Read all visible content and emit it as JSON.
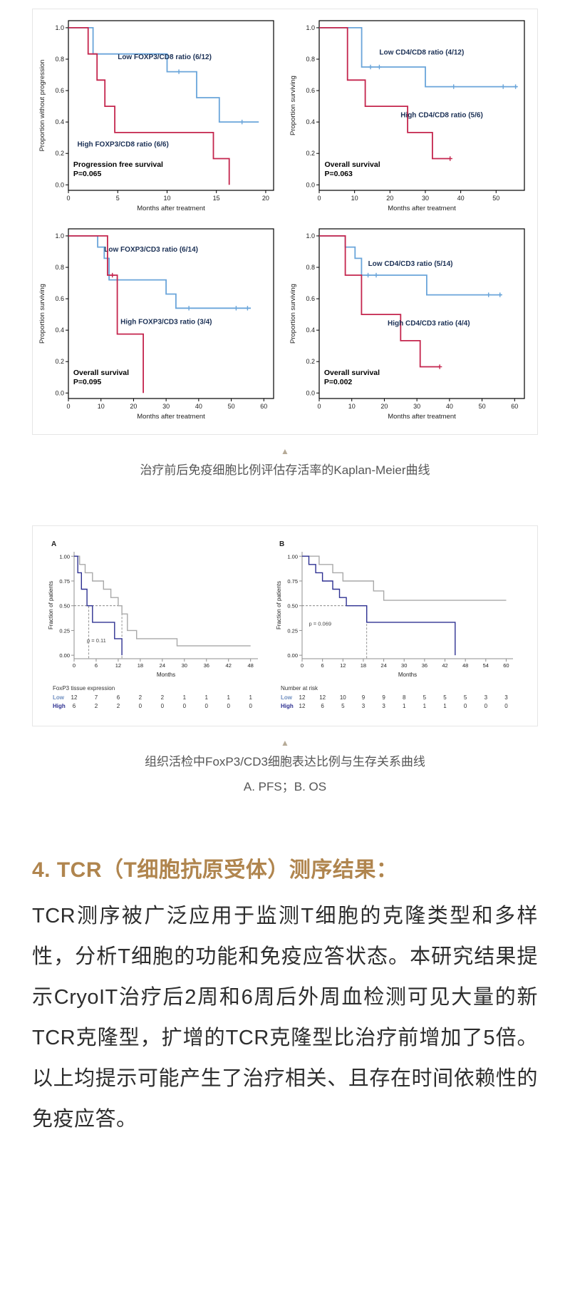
{
  "captions": {
    "arrow": "▲",
    "figure1": "治疗前后免疫细胞比例评估存活率的Kaplan-Meier曲线",
    "figure2_line1": "组织活检中FoxP3/CD3细胞表达比例与生存关系曲线",
    "figure2_line2": "A. PFS；B. OS"
  },
  "article": {
    "heading": "4. TCR（T细胞抗原受体）测序结果：",
    "heading_color": "#b0854e",
    "paragraph": "TCR测序被广泛应用于监测T细胞的克隆类型和多样性，分析T细胞的功能和免疫应答状态。本研究结果提示CryoIT治疗后2周和6周后外周血检测可见大量的新TCR克隆型，扩增的TCR克隆型比治疗前增加了5倍。以上均提示可能产生了治疗相关、且存在时间依赖性的免疫应答。"
  },
  "chart_data": [
    {
      "type": "line",
      "subtype": "kaplan-meier",
      "figure": 1,
      "ylabel": "Proportion without progression",
      "xlabel": "Months after treatment",
      "xticks": [
        0,
        5,
        10,
        15,
        20
      ],
      "yticks": [
        0,
        0.2,
        0.4,
        0.6,
        0.8,
        1
      ],
      "ydec": 1,
      "xmax": 20.8,
      "ylim": [
        0,
        1
      ],
      "annotation": [
        "Progression free survival",
        "P=0.065"
      ],
      "annotation_xy": [
        0.5,
        0.115
      ],
      "series": [
        {
          "label": "Low FOXP3/CD8 ratio (6/12)",
          "color": "#6aa5da",
          "label_xy": [
            5.0,
            0.8
          ],
          "points": [
            [
              0,
              1
            ],
            [
              2.5,
              1
            ],
            [
              2.5,
              0.833
            ],
            [
              10,
              0.833
            ],
            [
              10,
              0.72
            ],
            [
              13,
              0.72
            ],
            [
              13,
              0.555
            ],
            [
              15.3,
              0.555
            ],
            [
              15.3,
              0.4
            ],
            [
              19.3,
              0.4
            ]
          ],
          "censors": [
            [
              11.2,
              0.72
            ],
            [
              17.6,
              0.4
            ]
          ]
        },
        {
          "label": "High FOXP3/CD8 ratio (6/6)",
          "color": "#c4254d",
          "label_xy": [
            0.9,
            0.245
          ],
          "points": [
            [
              0,
              1
            ],
            [
              2,
              1
            ],
            [
              2,
              0.833
            ],
            [
              2.9,
              0.833
            ],
            [
              2.9,
              0.667
            ],
            [
              3.7,
              0.667
            ],
            [
              3.7,
              0.5
            ],
            [
              4.7,
              0.5
            ],
            [
              4.7,
              0.333
            ],
            [
              14.7,
              0.333
            ],
            [
              14.7,
              0.167
            ],
            [
              16.3,
              0.167
            ],
            [
              16.3,
              0
            ]
          ],
          "censors": []
        }
      ]
    },
    {
      "type": "line",
      "subtype": "kaplan-meier",
      "figure": 1,
      "ylabel": "Proportion surviving",
      "xlabel": "Months after treatment",
      "xticks": [
        0,
        10,
        20,
        30,
        40,
        50
      ],
      "yticks": [
        0,
        0.2,
        0.4,
        0.6,
        0.8,
        1
      ],
      "ydec": 1,
      "xmax": 58,
      "ylim": [
        0,
        1
      ],
      "annotation": [
        "Overall survival",
        "P=0.063"
      ],
      "annotation_xy": [
        1.5,
        0.115
      ],
      "series": [
        {
          "label": "Low CD4/CD8 ratio (4/12)",
          "color": "#6aa5da",
          "label_xy": [
            17,
            0.83
          ],
          "points": [
            [
              0,
              1
            ],
            [
              12,
              1
            ],
            [
              12,
              0.75
            ],
            [
              30,
              0.75
            ],
            [
              30,
              0.625
            ],
            [
              56,
              0.625
            ]
          ],
          "censors": [
            [
              14.5,
              0.75
            ],
            [
              17,
              0.75
            ],
            [
              38,
              0.625
            ],
            [
              52,
              0.625
            ],
            [
              55.5,
              0.625
            ]
          ]
        },
        {
          "label": "High CD4/CD8 ratio (5/6)",
          "color": "#c4254d",
          "label_xy": [
            23,
            0.43
          ],
          "points": [
            [
              0,
              1
            ],
            [
              8,
              1
            ],
            [
              8,
              0.667
            ],
            [
              13,
              0.667
            ],
            [
              13,
              0.5
            ],
            [
              25,
              0.5
            ],
            [
              25,
              0.333
            ],
            [
              32,
              0.333
            ],
            [
              32,
              0.167
            ],
            [
              37,
              0.167
            ]
          ],
          "censors": [
            [
              37,
              0.167
            ]
          ]
        }
      ]
    },
    {
      "type": "line",
      "subtype": "kaplan-meier",
      "figure": 1,
      "ylabel": "Proportion surviving",
      "xlabel": "Months after treatment",
      "xticks": [
        0,
        10,
        20,
        30,
        40,
        50,
        60
      ],
      "yticks": [
        0,
        0.2,
        0.4,
        0.6,
        0.8,
        1
      ],
      "ydec": 1,
      "xmax": 63,
      "ylim": [
        0,
        1
      ],
      "annotation": [
        "Overall survival",
        "P=0.095"
      ],
      "annotation_xy": [
        1.5,
        0.115
      ],
      "series": [
        {
          "label": "Low FOXP3/CD3 ratio (6/14)",
          "color": "#6aa5da",
          "label_xy": [
            11,
            0.9
          ],
          "points": [
            [
              0,
              1
            ],
            [
              9,
              1
            ],
            [
              9,
              0.929
            ],
            [
              11,
              0.929
            ],
            [
              11,
              0.857
            ],
            [
              12.5,
              0.857
            ],
            [
              12.5,
              0.72
            ],
            [
              30,
              0.72
            ],
            [
              30,
              0.63
            ],
            [
              33,
              0.63
            ],
            [
              33,
              0.54
            ],
            [
              56,
              0.54
            ]
          ],
          "censors": [
            [
              15,
              0.72
            ],
            [
              37,
              0.54
            ],
            [
              51.5,
              0.54
            ],
            [
              55,
              0.54
            ]
          ]
        },
        {
          "label": "High FOXP3/CD3 ratio (3/4)",
          "color": "#c4254d",
          "label_xy": [
            16,
            0.44
          ],
          "points": [
            [
              0,
              1
            ],
            [
              12,
              1
            ],
            [
              12,
              0.75
            ],
            [
              15,
              0.75
            ],
            [
              15,
              0.375
            ],
            [
              23,
              0.375
            ],
            [
              23,
              0
            ]
          ],
          "censors": [
            [
              13.5,
              0.75
            ]
          ]
        }
      ]
    },
    {
      "type": "line",
      "subtype": "kaplan-meier",
      "figure": 1,
      "ylabel": "Proportion surviving",
      "xlabel": "Months after treatment",
      "xticks": [
        0,
        10,
        20,
        30,
        40,
        50,
        60
      ],
      "yticks": [
        0,
        0.2,
        0.4,
        0.6,
        0.8,
        1
      ],
      "ydec": 1,
      "xmax": 63,
      "ylim": [
        0,
        1
      ],
      "annotation": [
        "Overall survival",
        "P=0.002"
      ],
      "annotation_xy": [
        1.5,
        0.115
      ],
      "series": [
        {
          "label": "Low CD4/CD3 ratio (5/14)",
          "color": "#6aa5da",
          "label_xy": [
            15,
            0.81
          ],
          "points": [
            [
              0,
              1
            ],
            [
              8,
              1
            ],
            [
              8,
              0.929
            ],
            [
              11,
              0.929
            ],
            [
              11,
              0.857
            ],
            [
              13,
              0.857
            ],
            [
              13,
              0.75
            ],
            [
              33,
              0.75
            ],
            [
              33,
              0.625
            ],
            [
              56,
              0.625
            ]
          ],
          "censors": [
            [
              15,
              0.75
            ],
            [
              17.5,
              0.75
            ],
            [
              52,
              0.625
            ],
            [
              55.5,
              0.625
            ]
          ]
        },
        {
          "label": "High CD4/CD3 ratio (4/4)",
          "color": "#c4254d",
          "label_xy": [
            21,
            0.43
          ],
          "points": [
            [
              0,
              1
            ],
            [
              8,
              1
            ],
            [
              8,
              0.75
            ],
            [
              13,
              0.75
            ],
            [
              13,
              0.5
            ],
            [
              25,
              0.5
            ],
            [
              25,
              0.333
            ],
            [
              31,
              0.333
            ],
            [
              31,
              0.167
            ],
            [
              37,
              0.167
            ]
          ],
          "censors": [
            [
              37,
              0.167
            ]
          ]
        }
      ]
    },
    {
      "type": "line",
      "subtype": "kaplan-meier",
      "figure": 2,
      "letter": "A",
      "ylabel": "Fraction of patients",
      "xlabel": "Months",
      "xticks": [
        0,
        6,
        12,
        18,
        24,
        30,
        36,
        42,
        48
      ],
      "yticks": [
        0,
        0.25,
        0.5,
        0.75,
        1
      ],
      "ydec": 2,
      "xmax": 50,
      "ylim": [
        0,
        1
      ],
      "pvalue": "p = 0.11",
      "pvalue_xy": [
        3.5,
        0.13
      ],
      "dashed": [
        [
          0,
          0.5,
          13,
          0.5
        ],
        [
          4,
          -0.03,
          4,
          0.5
        ],
        [
          13,
          -0.03,
          13,
          0.5
        ]
      ],
      "series": [
        {
          "label": "Low",
          "color": "#a9a9a9",
          "points": [
            [
              0,
              1
            ],
            [
              1.5,
              1
            ],
            [
              1.5,
              0.917
            ],
            [
              3,
              0.917
            ],
            [
              3,
              0.833
            ],
            [
              5,
              0.833
            ],
            [
              5,
              0.75
            ],
            [
              8,
              0.75
            ],
            [
              8,
              0.667
            ],
            [
              10,
              0.667
            ],
            [
              10,
              0.583
            ],
            [
              12,
              0.583
            ],
            [
              12,
              0.5
            ],
            [
              13,
              0.5
            ],
            [
              13,
              0.417
            ],
            [
              14.5,
              0.417
            ],
            [
              14.5,
              0.25
            ],
            [
              17,
              0.25
            ],
            [
              17,
              0.167
            ],
            [
              28,
              0.167
            ],
            [
              28,
              0.095
            ],
            [
              48,
              0.095
            ]
          ],
          "censors": []
        },
        {
          "label": "High",
          "color": "#2e3192",
          "points": [
            [
              0,
              1
            ],
            [
              1,
              1
            ],
            [
              1,
              0.833
            ],
            [
              2,
              0.833
            ],
            [
              2,
              0.667
            ],
            [
              3.5,
              0.667
            ],
            [
              3.5,
              0.5
            ],
            [
              5,
              0.5
            ],
            [
              5,
              0.333
            ],
            [
              11,
              0.333
            ],
            [
              11,
              0.167
            ],
            [
              13,
              0.167
            ],
            [
              13,
              0
            ]
          ],
          "censors": []
        }
      ],
      "risk_table": {
        "title": "FoxP3 tissue expression",
        "rows": [
          {
            "label": "Low",
            "color": "#6f8fc0",
            "values": [
              "12",
              "7",
              "6",
              "2",
              "2",
              "1",
              "1",
              "1",
              "1"
            ]
          },
          {
            "label": "High",
            "color": "#2e3192",
            "values": [
              "6",
              "2",
              "2",
              "0",
              "0",
              "0",
              "0",
              "0",
              "0"
            ]
          }
        ]
      }
    },
    {
      "type": "line",
      "subtype": "kaplan-meier",
      "figure": 2,
      "letter": "B",
      "ylabel": "Fraction of patients",
      "xlabel": "Months",
      "xticks": [
        0,
        6,
        12,
        18,
        24,
        30,
        36,
        42,
        48,
        54,
        60
      ],
      "yticks": [
        0,
        0.25,
        0.5,
        0.75,
        1
      ],
      "ydec": 2,
      "xmax": 62,
      "ylim": [
        0,
        1
      ],
      "pvalue": "p = 0.069",
      "pvalue_xy": [
        2,
        0.3
      ],
      "dashed": [
        [
          0,
          0.5,
          19,
          0.5
        ],
        [
          19,
          -0.03,
          19,
          0.5
        ]
      ],
      "series": [
        {
          "label": "Low",
          "color": "#a9a9a9",
          "points": [
            [
              0,
              1
            ],
            [
              5,
              1
            ],
            [
              5,
              0.917
            ],
            [
              9,
              0.917
            ],
            [
              9,
              0.833
            ],
            [
              12,
              0.833
            ],
            [
              12,
              0.75
            ],
            [
              21,
              0.75
            ],
            [
              21,
              0.65
            ],
            [
              24,
              0.65
            ],
            [
              24,
              0.555
            ],
            [
              60,
              0.555
            ]
          ],
          "censors": []
        },
        {
          "label": "High",
          "color": "#2e3192",
          "points": [
            [
              0,
              1
            ],
            [
              2,
              1
            ],
            [
              2,
              0.917
            ],
            [
              4,
              0.917
            ],
            [
              4,
              0.833
            ],
            [
              6,
              0.833
            ],
            [
              6,
              0.75
            ],
            [
              9,
              0.75
            ],
            [
              9,
              0.667
            ],
            [
              11,
              0.667
            ],
            [
              11,
              0.583
            ],
            [
              13,
              0.583
            ],
            [
              13,
              0.5
            ],
            [
              19,
              0.5
            ],
            [
              19,
              0.333
            ],
            [
              45,
              0.333
            ],
            [
              45,
              0
            ]
          ],
          "censors": []
        }
      ],
      "risk_table": {
        "title": "Number at risk",
        "rows": [
          {
            "label": "Low",
            "color": "#6f8fc0",
            "values": [
              "12",
              "12",
              "10",
              "9",
              "9",
              "8",
              "5",
              "5",
              "5",
              "3",
              "3"
            ]
          },
          {
            "label": "High",
            "color": "#2e3192",
            "values": [
              "12",
              "6",
              "5",
              "3",
              "3",
              "1",
              "1",
              "1",
              "0",
              "0",
              "0"
            ]
          }
        ]
      }
    }
  ]
}
